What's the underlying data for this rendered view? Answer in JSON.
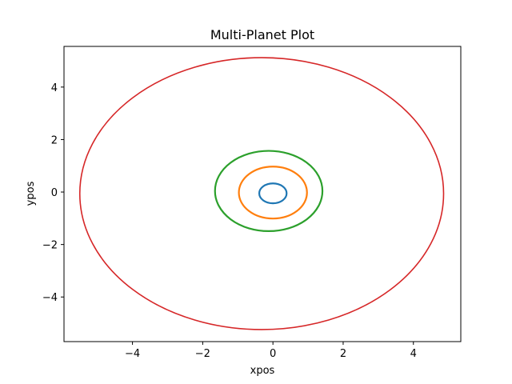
{
  "chart_data": {
    "type": "line",
    "title": "Multi-Planet Plot",
    "xlabel": "xpos",
    "ylabel": "ypos",
    "xlim": [
      -5.95,
      5.35
    ],
    "ylim": [
      -5.7,
      5.55
    ],
    "x_ticks": [
      -4,
      -2,
      0,
      2,
      4
    ],
    "y_ticks": [
      -4,
      -2,
      0,
      2,
      4
    ],
    "x_tick_labels": [
      "−4",
      "−2",
      "0",
      "2",
      "4"
    ],
    "y_tick_labels": [
      "−4",
      "−2",
      "0",
      "2",
      "4"
    ],
    "grid": false,
    "legend": "none",
    "series": [
      {
        "color": "#1f77b4",
        "center": [
          0.0,
          -0.05
        ],
        "rx": 0.39,
        "ry": 0.38
      },
      {
        "color": "#ff7f0e",
        "center": [
          0.0,
          -0.02
        ],
        "rx": 0.97,
        "ry": 0.99
      },
      {
        "color": "#2ca02c",
        "center": [
          -0.12,
          0.04
        ],
        "rx": 1.53,
        "ry": 1.53
      },
      {
        "color": "#d62728",
        "center": [
          -0.32,
          -0.06
        ],
        "rx": 5.18,
        "ry": 5.18
      }
    ]
  }
}
